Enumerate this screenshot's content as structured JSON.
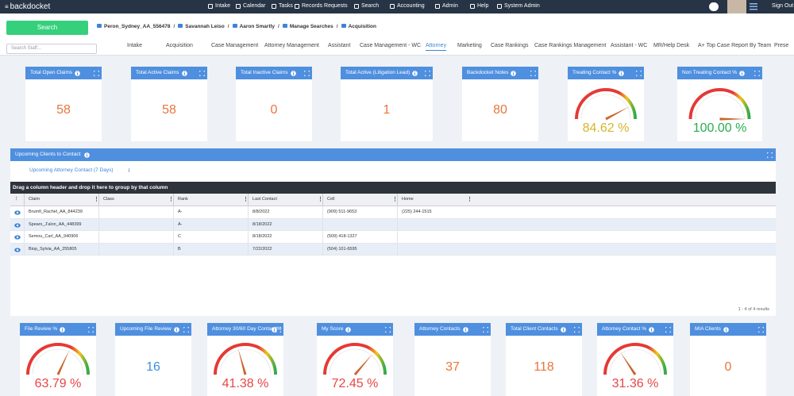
{
  "nav": {
    "logo": "backdocket",
    "items": [
      "Intake",
      "Calendar",
      "Tasks",
      "Records Requests",
      "Search",
      "Accounting",
      "Admin",
      "Help",
      "System Admin"
    ],
    "sign_out": "Sign Out"
  },
  "toolbar": {
    "search_button": "Search",
    "breadcrumbs": [
      "Peron_Sydney_AA_556478",
      "Savannah Leiso",
      "Aaron Smartly",
      "Manage Searches",
      "Acquisition"
    ]
  },
  "tabs": {
    "search_placeholder": "Search Staff...",
    "items": [
      "Intake",
      "Acquisition",
      "Case Management",
      "Attorney Management",
      "Assistant",
      "Case Management - WC",
      "Attorney",
      "Marketing",
      "Case Rankings",
      "Case Rankings Management",
      "Assistant - WC",
      "MR/Help Desk",
      "A+ Top Case Report By Team",
      "Prese"
    ],
    "active": 6
  },
  "widgets_top": [
    {
      "title": "Total Open Claims",
      "value": 58
    },
    {
      "title": "Total Active Claims",
      "value": 58
    },
    {
      "title": "Total Inactive Claims",
      "value": 0
    },
    {
      "title": "Total Active (Litigation Lead)",
      "value": 1
    },
    {
      "title": "Backdocket Notes",
      "value": 80
    },
    {
      "title": "Treating Contact %",
      "gauge": {
        "value": 84.62,
        "label": "84.62 %"
      }
    },
    {
      "title": "Non Treating Contact %",
      "gauge": {
        "value": 100.0,
        "label": "100.00 %"
      }
    }
  ],
  "upcoming": {
    "title": "Upcoming Clients to Contact",
    "link": "Upcoming Attorney Contact (7 Days)",
    "group_hint": "Drag a column header and drop it here to group by that column",
    "columns": [
      "Claim",
      "Class",
      "Rank",
      "Last Contact",
      "Cell",
      "Home"
    ],
    "rows": [
      [
        "Brumfi_Rachel_AA_844239",
        null,
        "A-",
        "8/8/2022",
        "(909) 511-9653",
        "(225) 244-1515"
      ],
      [
        "Spears_J'alon_AA_448399",
        null,
        "A-",
        "8/18/2022",
        null,
        null
      ],
      [
        "Semou_Carl_AA_940906",
        null,
        "C",
        "8/18/2022",
        "(509) 418-1327",
        null
      ],
      [
        "Biop_Sylvia_AA_255805",
        null,
        "B",
        "7/22/2022",
        "(504) 101-6595",
        null
      ]
    ],
    "footer": "1 - 4 of 4 results"
  },
  "widgets_bottom": [
    {
      "title": "File Review %",
      "gauge": {
        "value": 63.79,
        "label": "63.79 %"
      }
    },
    {
      "title": "Upcoming File Review",
      "value": 16
    },
    {
      "title": "Attorney 30/60 Day Contact %",
      "gauge": {
        "value": 41.38,
        "label": "41.38 %"
      }
    },
    {
      "title": "My Score",
      "gauge": {
        "value": 72.45,
        "label": "72.45 %"
      }
    },
    {
      "title": "Attorney Contacts",
      "value": 37
    },
    {
      "title": "Total Client Contacts",
      "value": 118
    },
    {
      "title": "Attorney Contact %",
      "gauge": {
        "value": 31.36,
        "label": "31.36 %"
      }
    },
    {
      "title": "MIA Clients",
      "value": 0
    }
  ]
}
